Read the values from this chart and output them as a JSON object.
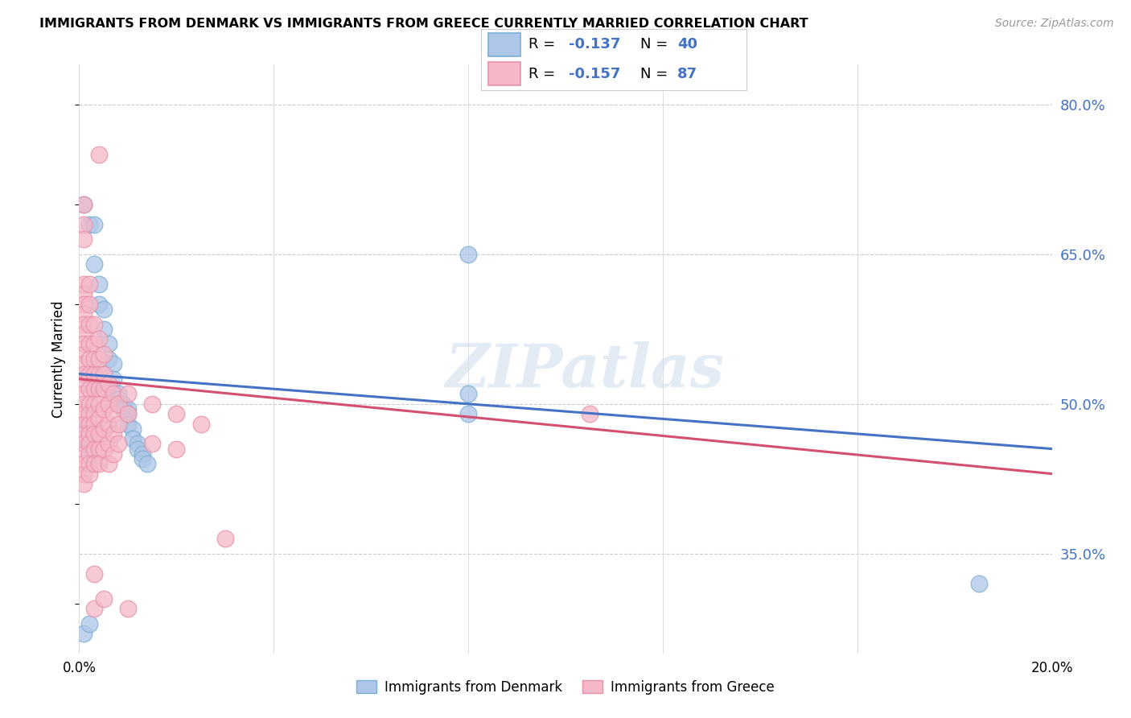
{
  "title": "IMMIGRANTS FROM DENMARK VS IMMIGRANTS FROM GREECE CURRENTLY MARRIED CORRELATION CHART",
  "source": "Source: ZipAtlas.com",
  "ylabel": "Currently Married",
  "xlim": [
    0.0,
    0.2
  ],
  "ylim": [
    0.25,
    0.84
  ],
  "xticks": [
    0.0,
    0.04,
    0.08,
    0.12,
    0.16,
    0.2
  ],
  "yticks_right": [
    0.35,
    0.5,
    0.65,
    0.8
  ],
  "ytick_labels_right": [
    "35.0%",
    "50.0%",
    "65.0%",
    "80.0%"
  ],
  "denmark_color": "#aec6e8",
  "greece_color": "#f4b8c8",
  "denmark_edge": "#7aafd4",
  "greece_edge": "#e890a8",
  "line_denmark_color": "#4472c4",
  "line_greece_color": "#d45070",
  "legend_label_denmark": "Immigrants from Denmark",
  "legend_label_greece": "Immigrants from Greece",
  "watermark": "ZIPatlas",
  "dk_line_y0": 0.53,
  "dk_line_y1": 0.455,
  "gr_line_y0": 0.525,
  "gr_line_y1": 0.43,
  "denmark_points": [
    [
      0.001,
      0.7
    ],
    [
      0.002,
      0.68
    ],
    [
      0.003,
      0.64
    ],
    [
      0.004,
      0.62
    ],
    [
      0.004,
      0.6
    ],
    [
      0.005,
      0.595
    ],
    [
      0.005,
      0.575
    ],
    [
      0.006,
      0.56
    ],
    [
      0.006,
      0.545
    ],
    [
      0.007,
      0.54
    ],
    [
      0.007,
      0.525
    ],
    [
      0.007,
      0.51
    ],
    [
      0.008,
      0.51
    ],
    [
      0.008,
      0.505
    ],
    [
      0.009,
      0.5
    ],
    [
      0.009,
      0.495
    ],
    [
      0.01,
      0.495
    ],
    [
      0.01,
      0.49
    ],
    [
      0.01,
      0.48
    ],
    [
      0.011,
      0.475
    ],
    [
      0.011,
      0.465
    ],
    [
      0.012,
      0.46
    ],
    [
      0.012,
      0.455
    ],
    [
      0.013,
      0.45
    ],
    [
      0.013,
      0.445
    ],
    [
      0.014,
      0.44
    ],
    [
      0.001,
      0.46
    ],
    [
      0.002,
      0.455
    ],
    [
      0.002,
      0.45
    ],
    [
      0.003,
      0.445
    ],
    [
      0.001,
      0.27
    ],
    [
      0.002,
      0.28
    ],
    [
      0.08,
      0.65
    ],
    [
      0.08,
      0.51
    ],
    [
      0.08,
      0.49
    ],
    [
      0.185,
      0.32
    ],
    [
      0.003,
      0.68
    ],
    [
      0.004,
      0.52
    ],
    [
      0.001,
      0.48
    ],
    [
      0.001,
      0.462
    ]
  ],
  "greece_points": [
    [
      0.001,
      0.7
    ],
    [
      0.001,
      0.68
    ],
    [
      0.001,
      0.665
    ],
    [
      0.001,
      0.62
    ],
    [
      0.001,
      0.61
    ],
    [
      0.001,
      0.6
    ],
    [
      0.001,
      0.59
    ],
    [
      0.001,
      0.58
    ],
    [
      0.001,
      0.57
    ],
    [
      0.001,
      0.56
    ],
    [
      0.001,
      0.55
    ],
    [
      0.001,
      0.54
    ],
    [
      0.001,
      0.53
    ],
    [
      0.001,
      0.52
    ],
    [
      0.001,
      0.51
    ],
    [
      0.001,
      0.5
    ],
    [
      0.001,
      0.49
    ],
    [
      0.001,
      0.48
    ],
    [
      0.001,
      0.47
    ],
    [
      0.001,
      0.46
    ],
    [
      0.001,
      0.45
    ],
    [
      0.001,
      0.44
    ],
    [
      0.001,
      0.43
    ],
    [
      0.001,
      0.42
    ],
    [
      0.002,
      0.62
    ],
    [
      0.002,
      0.6
    ],
    [
      0.002,
      0.58
    ],
    [
      0.002,
      0.56
    ],
    [
      0.002,
      0.545
    ],
    [
      0.002,
      0.53
    ],
    [
      0.002,
      0.515
    ],
    [
      0.002,
      0.5
    ],
    [
      0.002,
      0.49
    ],
    [
      0.002,
      0.48
    ],
    [
      0.002,
      0.47
    ],
    [
      0.002,
      0.46
    ],
    [
      0.002,
      0.45
    ],
    [
      0.002,
      0.44
    ],
    [
      0.002,
      0.43
    ],
    [
      0.003,
      0.58
    ],
    [
      0.003,
      0.56
    ],
    [
      0.003,
      0.545
    ],
    [
      0.003,
      0.53
    ],
    [
      0.003,
      0.515
    ],
    [
      0.003,
      0.5
    ],
    [
      0.003,
      0.49
    ],
    [
      0.003,
      0.48
    ],
    [
      0.003,
      0.47
    ],
    [
      0.003,
      0.455
    ],
    [
      0.003,
      0.44
    ],
    [
      0.004,
      0.565
    ],
    [
      0.004,
      0.545
    ],
    [
      0.004,
      0.53
    ],
    [
      0.004,
      0.515
    ],
    [
      0.004,
      0.5
    ],
    [
      0.004,
      0.485
    ],
    [
      0.004,
      0.47
    ],
    [
      0.004,
      0.455
    ],
    [
      0.004,
      0.44
    ],
    [
      0.005,
      0.55
    ],
    [
      0.005,
      0.53
    ],
    [
      0.005,
      0.515
    ],
    [
      0.005,
      0.495
    ],
    [
      0.005,
      0.475
    ],
    [
      0.005,
      0.455
    ],
    [
      0.006,
      0.52
    ],
    [
      0.006,
      0.5
    ],
    [
      0.006,
      0.48
    ],
    [
      0.006,
      0.46
    ],
    [
      0.006,
      0.44
    ],
    [
      0.007,
      0.51
    ],
    [
      0.007,
      0.49
    ],
    [
      0.007,
      0.47
    ],
    [
      0.007,
      0.45
    ],
    [
      0.008,
      0.5
    ],
    [
      0.008,
      0.48
    ],
    [
      0.008,
      0.46
    ],
    [
      0.01,
      0.51
    ],
    [
      0.01,
      0.49
    ],
    [
      0.015,
      0.5
    ],
    [
      0.015,
      0.46
    ],
    [
      0.02,
      0.49
    ],
    [
      0.02,
      0.455
    ],
    [
      0.025,
      0.48
    ],
    [
      0.03,
      0.365
    ],
    [
      0.003,
      0.33
    ],
    [
      0.003,
      0.295
    ],
    [
      0.004,
      0.75
    ],
    [
      0.105,
      0.49
    ],
    [
      0.005,
      0.305
    ],
    [
      0.01,
      0.295
    ]
  ]
}
